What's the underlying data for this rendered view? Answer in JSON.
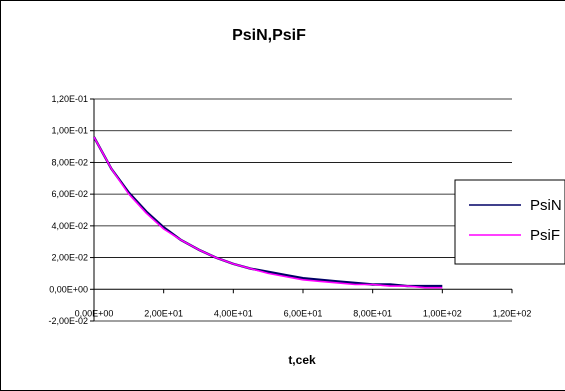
{
  "chart_data": {
    "type": "line",
    "title": "PsiN,PsiF",
    "xlabel": "t,cek",
    "ylabel": "",
    "xlim": [
      0,
      120
    ],
    "ylim": [
      -0.02,
      0.12
    ],
    "x_ticks": [
      0,
      20,
      40,
      60,
      80,
      100,
      120
    ],
    "y_ticks": [
      -0.02,
      0,
      0.02,
      0.04,
      0.06,
      0.08,
      0.1,
      0.12
    ],
    "x_tick_labels": [
      "0,00E+00",
      "2,00E+01",
      "4,00E+01",
      "6,00E+01",
      "8,00E+01",
      "1,00E+02",
      "1,20E+02"
    ],
    "y_tick_labels": [
      "-2,00E-02",
      "0,00E+00",
      "2,00E-02",
      "4,00E-02",
      "6,00E-02",
      "8,00E-02",
      "1,00E-01",
      "1,20E-01"
    ],
    "grid": "horizontal",
    "legend_position": "right",
    "series": [
      {
        "name": "PsiN",
        "color": "#000066",
        "x": [
          0,
          5,
          10,
          15,
          20,
          25,
          30,
          35,
          40,
          45,
          50,
          55,
          60,
          65,
          70,
          75,
          80,
          85,
          90,
          95,
          100
        ],
        "values": [
          0.096,
          0.076,
          0.061,
          0.049,
          0.039,
          0.031,
          0.025,
          0.02,
          0.016,
          0.013,
          0.011,
          0.009,
          0.007,
          0.006,
          0.005,
          0.004,
          0.003,
          0.003,
          0.002,
          0.002,
          0.002
        ]
      },
      {
        "name": "PsiF",
        "color": "#ff00ff",
        "x": [
          0,
          5,
          10,
          15,
          20,
          25,
          30,
          35,
          40,
          45,
          50,
          55,
          60,
          65,
          70,
          75,
          80,
          85,
          90,
          95,
          100
        ],
        "values": [
          0.096,
          0.076,
          0.06,
          0.048,
          0.038,
          0.031,
          0.025,
          0.02,
          0.016,
          0.013,
          0.01,
          0.008,
          0.006,
          0.005,
          0.004,
          0.003,
          0.003,
          0.002,
          0.002,
          0.001,
          0.001
        ]
      }
    ]
  }
}
